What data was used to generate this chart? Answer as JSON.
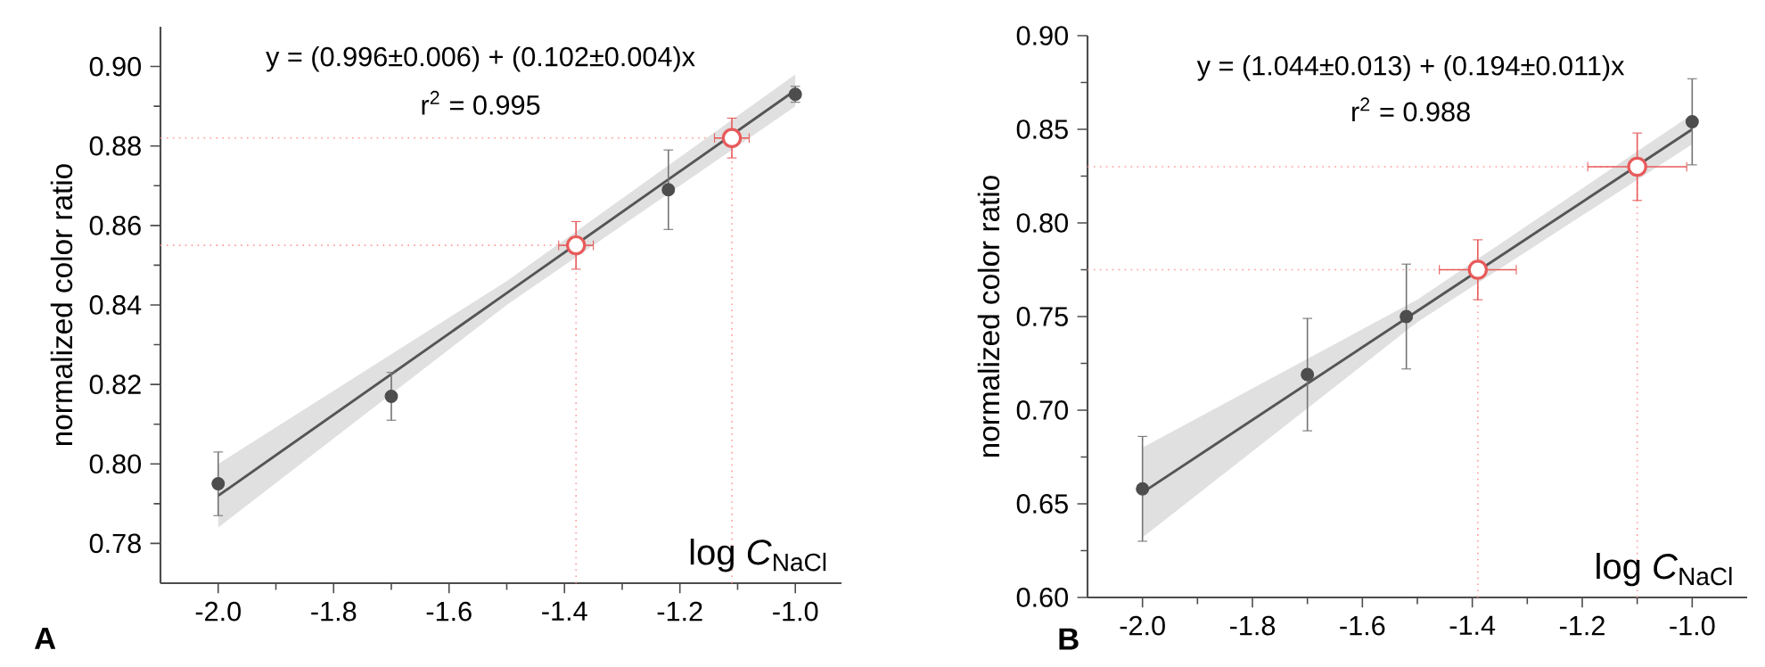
{
  "chart_data": [
    {
      "type": "scatter",
      "ylabel": "normalized color ratio",
      "xlabel": "log *C*$_{NaCl}$",
      "annotations": [
        "y = (0.996±0.006) + (0.102±0.004)x",
        "r$^{2}$ = 0.995",
        "**A**"
      ],
      "xlim": [
        -2.1,
        -0.92
      ],
      "ylim": [
        0.77,
        0.91
      ],
      "xticks": [
        {
          "value": -2.0,
          "label": "-2.0"
        },
        {
          "value": -1.8,
          "label": "-1.8"
        },
        {
          "value": -1.6,
          "label": "-1.6"
        },
        {
          "value": -1.4,
          "label": "-1.4"
        },
        {
          "value": -1.2,
          "label": "-1.2"
        },
        {
          "value": -1.0,
          "label": "-1.0"
        }
      ],
      "yticks": [
        0.78,
        {
          "value": 0.8,
          "label": "0.80"
        },
        0.82,
        0.84,
        0.86,
        0.88,
        {
          "value": 0.9,
          "label": "0.90"
        }
      ],
      "grid": false,
      "series": [
        {
          "type": "line",
          "color": "#555555",
          "x": [
            -2.0,
            -1.5,
            -1.0
          ],
          "values": [
            0.792,
            0.843,
            0.894
          ],
          "lower": [
            0.784,
            0.84,
            0.89
          ],
          "upper": [
            0.8,
            0.846,
            0.898
          ],
          "marker": "none"
        },
        {
          "color": "#4d4d4d",
          "x": [
            -2.0,
            -1.7,
            -1.22,
            -1.0
          ],
          "values": [
            0.795,
            0.817,
            0.869,
            0.893
          ],
          "errors": [
            0.008,
            0.006,
            0.01,
            0.002
          ],
          "marker": "circle"
        },
        {
          "color": "#e85a5a",
          "x": [
            -1.38,
            -1.11
          ],
          "values": [
            0.855,
            0.882
          ],
          "errors": [
            0.006,
            0.005
          ],
          "xerrors": [
            0.03,
            0.03
          ],
          "marker": "circle"
        }
      ],
      "ref_lines": [
        {
          "axis": "y",
          "value": 0.855,
          "color": "#ff9999",
          "line_style": "dotted"
        },
        {
          "axis": "y",
          "value": 0.882,
          "color": "#ff9999",
          "line_style": "dotted"
        },
        {
          "axis": "x",
          "value": -1.38,
          "color": "#ff9999",
          "line_style": "dotted"
        },
        {
          "axis": "x",
          "value": -1.11,
          "color": "#ff9999",
          "line_style": "dotted"
        }
      ]
    },
    {
      "type": "scatter",
      "ylabel": "normalized color ratio",
      "xlabel": "log *C*$_{NaCl}$",
      "annotations": [
        "y = (1.044±0.013) + (0.194±0.011)x",
        "r$^{2}$ = 0.988",
        "**B**"
      ],
      "xlim": [
        -2.1,
        -0.9
      ],
      "ylim": [
        0.6,
        0.9
      ],
      "xticks": [
        {
          "value": -2.0,
          "label": "-2.0"
        },
        {
          "value": -1.8,
          "label": "-1.8"
        },
        {
          "value": -1.6,
          "label": "-1.6"
        },
        {
          "value": -1.4,
          "label": "-1.4"
        },
        {
          "value": -1.2,
          "label": "-1.2"
        },
        {
          "value": -1.0,
          "label": "-1.0"
        }
      ],
      "yticks": [
        {
          "value": 0.6,
          "label": "0.60"
        },
        0.65,
        {
          "value": 0.7,
          "label": "0.70"
        },
        0.75,
        {
          "value": 0.8,
          "label": "0.80"
        },
        0.85,
        {
          "value": 0.9,
          "label": "0.90"
        }
      ],
      "grid": false,
      "series": [
        {
          "type": "line",
          "color": "#555555",
          "x": [
            -2.0,
            -1.5,
            -1.0
          ],
          "values": [
            0.656,
            0.753,
            0.85
          ],
          "lower": [
            0.632,
            0.747,
            0.842
          ],
          "upper": [
            0.68,
            0.759,
            0.858
          ],
          "marker": "none"
        },
        {
          "color": "#4d4d4d",
          "x": [
            -2.0,
            -1.7,
            -1.52,
            -1.0
          ],
          "values": [
            0.658,
            0.719,
            0.75,
            0.854
          ],
          "errors": [
            0.028,
            0.03,
            0.028,
            0.023
          ],
          "marker": "circle"
        },
        {
          "color": "#e85a5a",
          "x": [
            -1.39,
            -1.1
          ],
          "values": [
            0.775,
            0.83
          ],
          "errors": [
            0.016,
            0.018
          ],
          "xerrors": [
            0.07,
            0.09
          ],
          "marker": "circle"
        }
      ],
      "ref_lines": [
        {
          "axis": "y",
          "value": 0.775,
          "color": "#ff9999",
          "line_style": "dotted"
        },
        {
          "axis": "y",
          "value": 0.83,
          "color": "#ff9999",
          "line_style": "dotted"
        },
        {
          "axis": "x",
          "value": -1.39,
          "color": "#ff9999",
          "line_style": "dotted"
        },
        {
          "axis": "x",
          "value": -1.1,
          "color": "#ff9999",
          "line_style": "dotted"
        }
      ]
    }
  ]
}
